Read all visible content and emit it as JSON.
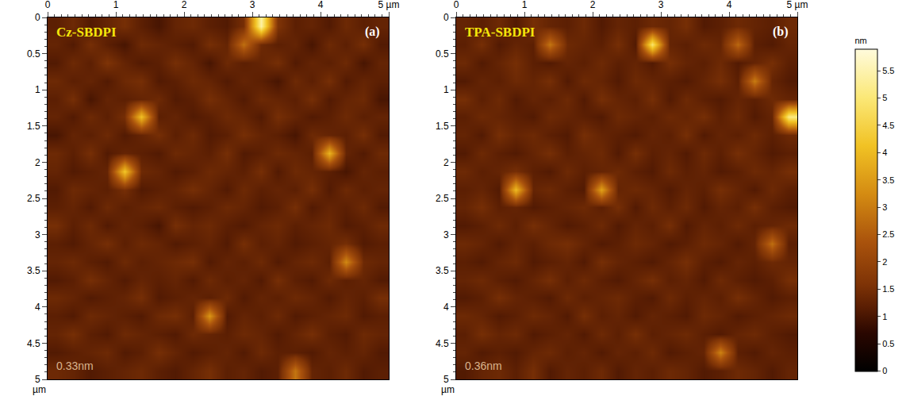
{
  "chart_data": [
    {
      "type": "heatmap",
      "title": "Cz-SBDPI",
      "annotations": [
        "(a)",
        "0.33nm"
      ],
      "xlim": [
        0,
        5
      ],
      "xticks": [
        0,
        1,
        2,
        3,
        4,
        {
          "value": 5,
          "label": "5 µm"
        }
      ],
      "ylim": [
        5,
        0
      ],
      "yticks": [
        0,
        0.5,
        1,
        1.5,
        2,
        2.5,
        3,
        3.5,
        4,
        4.5,
        5
      ],
      "ylabel": "µm",
      "x": [
        0.125,
        0.375,
        0.625,
        0.875,
        1.125,
        1.375,
        1.625,
        1.875,
        2.125,
        2.375,
        2.625,
        2.875,
        3.125,
        3.375,
        3.625,
        3.875,
        4.125,
        4.375,
        4.625,
        4.875
      ],
      "y": [
        0.125,
        0.375,
        0.625,
        0.875,
        1.125,
        1.375,
        1.625,
        1.875,
        2.125,
        2.375,
        2.625,
        2.875,
        3.125,
        3.375,
        3.625,
        3.875,
        4.125,
        4.375,
        4.625,
        4.875
      ],
      "z": [
        [
          1.2,
          1.4,
          1.1,
          1.3,
          1.5,
          1.2,
          1.0,
          1.3,
          1.4,
          1.2,
          1.1,
          1.5,
          5.4,
          1.6,
          1.2,
          1.3,
          1.1,
          1.4,
          1.2,
          1.3
        ],
        [
          1.3,
          1.1,
          1.5,
          1.2,
          1.0,
          1.4,
          1.3,
          1.2,
          1.1,
          1.5,
          1.3,
          2.8,
          1.4,
          1.2,
          1.3,
          1.0,
          1.4,
          1.2,
          1.5,
          1.1
        ],
        [
          1.1,
          1.4,
          1.2,
          1.6,
          1.3,
          1.1,
          1.2,
          1.5,
          1.3,
          1.0,
          1.4,
          1.2,
          1.3,
          1.5,
          1.1,
          1.3,
          1.2,
          1.4,
          1.0,
          1.3
        ],
        [
          1.4,
          1.2,
          1.3,
          1.1,
          1.4,
          1.5,
          1.1,
          1.2,
          1.4,
          1.3,
          1.1,
          1.3,
          1.2,
          1.0,
          1.4,
          1.2,
          1.5,
          1.1,
          1.3,
          1.2
        ],
        [
          1.2,
          1.5,
          1.0,
          1.3,
          1.2,
          1.3,
          1.4,
          1.1,
          1.2,
          1.5,
          1.3,
          1.1,
          1.4,
          1.3,
          1.2,
          1.5,
          1.1,
          1.3,
          1.4,
          1.0
        ],
        [
          1.3,
          1.1,
          1.4,
          1.2,
          1.5,
          4.1,
          1.2,
          1.3,
          1.1,
          1.2,
          1.4,
          1.3,
          1.1,
          1.5,
          1.3,
          1.1,
          1.2,
          1.4,
          1.2,
          1.3
        ],
        [
          1.0,
          1.3,
          1.2,
          1.4,
          1.1,
          1.3,
          1.5,
          1.2,
          1.4,
          1.1,
          1.2,
          1.5,
          1.3,
          1.2,
          1.0,
          1.4,
          1.3,
          1.2,
          1.5,
          1.1
        ],
        [
          1.4,
          1.2,
          1.5,
          1.1,
          1.3,
          1.2,
          1.1,
          1.4,
          1.3,
          1.2,
          1.5,
          1.1,
          1.2,
          1.4,
          1.3,
          1.2,
          3.9,
          1.3,
          1.1,
          1.4
        ],
        [
          1.3,
          1.1,
          1.2,
          1.3,
          4.2,
          1.4,
          1.3,
          1.1,
          1.2,
          1.4,
          1.3,
          1.2,
          1.5,
          1.1,
          1.4,
          1.3,
          1.2,
          1.0,
          1.3,
          1.2
        ],
        [
          1.1,
          1.4,
          1.3,
          1.2,
          1.5,
          1.1,
          1.2,
          1.3,
          1.5,
          1.3,
          1.1,
          1.4,
          1.2,
          1.3,
          1.2,
          1.5,
          1.1,
          1.4,
          1.2,
          1.3
        ],
        [
          1.2,
          1.3,
          1.1,
          1.4,
          1.2,
          1.3,
          1.4,
          1.2,
          1.1,
          1.2,
          1.4,
          1.3,
          1.1,
          1.2,
          1.5,
          1.1,
          1.3,
          1.2,
          1.4,
          1.1
        ],
        [
          1.5,
          1.2,
          1.4,
          1.1,
          1.3,
          1.2,
          1.0,
          1.5,
          1.3,
          1.4,
          1.2,
          1.1,
          1.3,
          1.4,
          1.2,
          1.3,
          1.4,
          1.1,
          1.2,
          1.4
        ],
        [
          1.2,
          1.1,
          1.3,
          1.5,
          1.2,
          1.4,
          1.3,
          1.1,
          1.2,
          1.3,
          1.1,
          1.5,
          1.2,
          1.3,
          1.1,
          1.2,
          1.3,
          1.5,
          1.1,
          1.2
        ],
        [
          1.3,
          1.4,
          1.2,
          1.1,
          1.4,
          1.2,
          1.3,
          1.4,
          1.5,
          1.1,
          1.3,
          1.2,
          1.4,
          1.1,
          1.3,
          1.4,
          1.2,
          3.2,
          1.4,
          1.3
        ],
        [
          1.1,
          1.2,
          1.5,
          1.3,
          1.1,
          1.3,
          1.2,
          1.3,
          1.1,
          1.4,
          1.2,
          1.3,
          1.1,
          1.5,
          1.2,
          1.1,
          1.4,
          1.2,
          1.3,
          1.1
        ],
        [
          1.4,
          1.3,
          1.1,
          1.2,
          1.3,
          1.5,
          1.1,
          1.2,
          1.3,
          1.2,
          1.4,
          1.1,
          1.3,
          1.2,
          1.4,
          1.3,
          1.1,
          1.3,
          1.2,
          1.5
        ],
        [
          1.2,
          1.1,
          1.4,
          1.3,
          1.2,
          1.1,
          1.4,
          1.5,
          1.2,
          3.4,
          1.1,
          1.3,
          1.2,
          1.4,
          1.1,
          1.2,
          1.3,
          1.4,
          1.1,
          1.2
        ],
        [
          1.3,
          1.5,
          1.2,
          1.1,
          1.4,
          1.3,
          1.2,
          1.1,
          1.4,
          1.3,
          1.2,
          1.4,
          1.3,
          1.1,
          1.3,
          1.5,
          1.2,
          1.1,
          1.4,
          1.3
        ],
        [
          1.1,
          1.2,
          1.3,
          1.4,
          1.1,
          1.2,
          1.5,
          1.3,
          1.1,
          1.2,
          1.3,
          1.1,
          1.4,
          1.2,
          1.2,
          1.1,
          1.3,
          1.2,
          1.3,
          1.1
        ],
        [
          1.4,
          1.3,
          1.1,
          1.2,
          1.3,
          1.4,
          1.2,
          1.1,
          1.3,
          1.5,
          1.2,
          1.3,
          1.1,
          1.2,
          2.9,
          1.3,
          1.2,
          1.4,
          1.1,
          1.2
        ]
      ],
      "zlim": [
        0,
        5.9
      ],
      "zticks": [
        0,
        0.5,
        1,
        1.5,
        2,
        2.5,
        3,
        3.5,
        4,
        4.5,
        5,
        5.5
      ],
      "colorbar_title": "nm"
    },
    {
      "type": "heatmap",
      "title": "TPA-SBDPI",
      "annotations": [
        "(b)",
        "0.36nm"
      ],
      "xlim": [
        0,
        5
      ],
      "xticks": [
        0,
        1,
        2,
        3,
        4,
        {
          "value": 5,
          "label": "5 µm"
        }
      ],
      "ylim": [
        5,
        0
      ],
      "yticks": [
        0,
        0.5,
        1,
        1.5,
        2,
        2.5,
        3,
        3.5,
        4,
        4.5,
        5
      ],
      "ylabel": "µm",
      "x": [
        0.125,
        0.375,
        0.625,
        0.875,
        1.125,
        1.375,
        1.625,
        1.875,
        2.125,
        2.375,
        2.625,
        2.875,
        3.125,
        3.375,
        3.625,
        3.875,
        4.125,
        4.375,
        4.625,
        4.875
      ],
      "y": [
        0.125,
        0.375,
        0.625,
        0.875,
        1.125,
        1.375,
        1.625,
        1.875,
        2.125,
        2.375,
        2.625,
        2.875,
        3.125,
        3.375,
        3.625,
        3.875,
        4.125,
        4.375,
        4.625,
        4.875
      ],
      "z": [
        [
          1.3,
          1.2,
          1.4,
          1.1,
          1.5,
          1.3,
          1.2,
          1.4,
          1.1,
          1.3,
          1.2,
          1.4,
          1.3,
          1.5,
          1.1,
          1.2,
          1.4,
          1.3,
          1.2,
          1.4
        ],
        [
          1.2,
          1.5,
          1.1,
          1.3,
          1.2,
          2.9,
          1.4,
          1.3,
          1.2,
          1.5,
          1.1,
          4.9,
          1.3,
          1.2,
          1.4,
          1.3,
          2.7,
          1.2,
          1.1,
          1.3
        ],
        [
          1.4,
          1.1,
          1.3,
          1.5,
          1.2,
          1.1,
          1.3,
          1.2,
          1.4,
          1.2,
          1.3,
          1.1,
          1.5,
          1.3,
          1.2,
          1.4,
          1.1,
          1.3,
          1.5,
          1.2
        ],
        [
          1.1,
          1.3,
          1.2,
          1.4,
          1.3,
          1.5,
          1.1,
          1.4,
          1.3,
          1.1,
          1.4,
          1.3,
          1.2,
          1.1,
          1.3,
          1.5,
          1.2,
          3.0,
          1.3,
          1.1
        ],
        [
          1.5,
          1.2,
          1.4,
          1.1,
          1.3,
          1.2,
          1.4,
          1.1,
          1.5,
          1.3,
          1.2,
          1.5,
          1.1,
          1.4,
          1.2,
          1.1,
          1.3,
          1.2,
          1.4,
          1.3
        ],
        [
          1.2,
          1.4,
          1.3,
          1.2,
          1.1,
          1.4,
          1.3,
          1.2,
          1.1,
          1.4,
          1.3,
          1.2,
          1.4,
          1.3,
          1.5,
          1.2,
          1.4,
          1.1,
          1.3,
          5.1
        ],
        [
          1.3,
          1.1,
          1.5,
          1.3,
          1.4,
          1.2,
          1.1,
          1.5,
          1.3,
          1.2,
          1.1,
          1.3,
          1.2,
          1.5,
          1.1,
          1.3,
          1.2,
          1.4,
          1.2,
          1.4
        ],
        [
          1.1,
          1.4,
          1.2,
          1.1,
          1.3,
          1.5,
          1.2,
          1.3,
          1.4,
          1.1,
          1.5,
          1.2,
          1.3,
          1.1,
          1.4,
          1.2,
          1.5,
          1.3,
          1.1,
          1.2
        ],
        [
          1.4,
          1.2,
          1.3,
          1.5,
          1.2,
          1.1,
          1.4,
          1.2,
          1.3,
          1.4,
          1.2,
          1.1,
          1.4,
          1.2,
          1.3,
          1.1,
          1.2,
          1.4,
          1.3,
          1.5
        ],
        [
          1.2,
          1.3,
          1.1,
          4.0,
          1.3,
          1.4,
          1.2,
          1.1,
          3.6,
          1.3,
          1.4,
          1.3,
          1.1,
          1.3,
          1.2,
          1.5,
          1.3,
          1.1,
          1.4,
          1.2
        ],
        [
          1.3,
          1.5,
          1.2,
          1.3,
          1.1,
          1.2,
          1.3,
          1.4,
          1.2,
          1.5,
          1.1,
          1.4,
          1.2,
          1.4,
          1.1,
          1.3,
          1.2,
          1.5,
          1.2,
          1.1
        ],
        [
          1.1,
          1.2,
          1.4,
          1.2,
          1.5,
          1.3,
          1.1,
          1.2,
          1.4,
          1.1,
          1.3,
          1.2,
          1.5,
          1.1,
          1.3,
          1.2,
          1.4,
          1.2,
          1.3,
          1.4
        ],
        [
          1.4,
          1.3,
          1.1,
          1.3,
          1.2,
          1.4,
          1.5,
          1.3,
          1.1,
          1.2,
          1.4,
          1.3,
          1.1,
          1.2,
          1.4,
          1.3,
          1.1,
          1.3,
          2.8,
          1.2
        ],
        [
          1.2,
          1.1,
          1.3,
          1.4,
          1.1,
          1.2,
          1.3,
          1.1,
          1.5,
          1.3,
          1.2,
          1.1,
          1.3,
          1.5,
          1.2,
          1.1,
          1.3,
          1.2,
          1.4,
          1.3
        ],
        [
          1.3,
          1.4,
          1.2,
          1.1,
          1.3,
          1.5,
          1.2,
          1.4,
          1.2,
          1.1,
          1.3,
          1.5,
          1.2,
          1.3,
          1.1,
          1.4,
          1.2,
          1.1,
          1.2,
          1.5
        ],
        [
          1.1,
          1.2,
          1.5,
          1.3,
          1.2,
          1.1,
          1.4,
          1.2,
          1.3,
          1.4,
          1.2,
          1.1,
          1.4,
          1.2,
          1.3,
          1.2,
          1.5,
          1.3,
          1.1,
          1.2
        ],
        [
          1.4,
          1.3,
          1.1,
          1.2,
          1.4,
          1.3,
          1.1,
          1.5,
          1.2,
          1.3,
          1.1,
          1.3,
          1.2,
          1.1,
          1.4,
          1.3,
          1.1,
          1.2,
          1.3,
          1.4
        ],
        [
          1.2,
          1.5,
          1.3,
          1.4,
          1.1,
          1.2,
          1.3,
          1.1,
          1.4,
          1.2,
          1.5,
          1.2,
          1.3,
          1.4,
          1.2,
          1.1,
          1.3,
          1.4,
          1.2,
          1.1
        ],
        [
          1.3,
          1.1,
          1.2,
          1.1,
          1.3,
          1.4,
          1.2,
          1.3,
          1.1,
          1.3,
          1.2,
          1.4,
          1.1,
          1.2,
          1.3,
          3.1,
          1.2,
          1.1,
          1.3,
          1.2
        ],
        [
          1.1,
          1.3,
          1.4,
          1.2,
          1.5,
          1.1,
          1.3,
          1.2,
          1.4,
          1.1,
          1.3,
          1.2,
          1.4,
          1.3,
          1.1,
          1.2,
          1.4,
          1.3,
          1.1,
          1.3
        ]
      ],
      "zlim": [
        0,
        5.9
      ],
      "zticks": [
        0,
        0.5,
        1,
        1.5,
        2,
        2.5,
        3,
        3.5,
        4,
        4.5,
        5,
        5.5
      ],
      "colorbar_title": "nm"
    }
  ]
}
